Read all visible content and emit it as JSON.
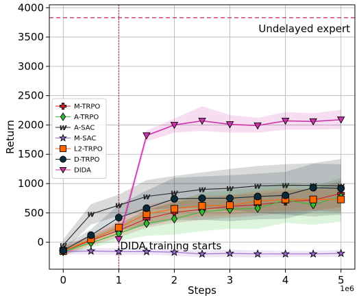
{
  "chart_data": {
    "type": "line",
    "xlabel": "Steps",
    "ylabel": "Return",
    "x_multiplier_label": "1e6",
    "xlim": [
      -0.25,
      5.25
    ],
    "ylim": [
      -460,
      4050
    ],
    "x_ticks": [
      0,
      1,
      2,
      3,
      4,
      5
    ],
    "x_tick_labels": [
      "0",
      "1",
      "2",
      "3",
      "4",
      "5"
    ],
    "y_ticks": [
      0,
      500,
      1000,
      1500,
      2000,
      2500,
      3000,
      3500,
      4000
    ],
    "y_tick_labels": [
      "0",
      "500",
      "1000",
      "1500",
      "2000",
      "2500",
      "3000",
      "3500",
      "4000"
    ],
    "grid": true,
    "legend_position": "center-left",
    "reference_lines": [
      {
        "orientation": "horizontal",
        "value": 3830,
        "color": "#cc3377",
        "label": "Undelayed expert"
      },
      {
        "orientation": "vertical",
        "value": 1,
        "color": "#cc3377",
        "label": "DIDA training starts"
      }
    ],
    "series": [
      {
        "name": "M-TRPO",
        "marker": "plus",
        "color": "#cc2222",
        "x": [
          0,
          0.5,
          1,
          1.5,
          2,
          2.5,
          3,
          3.5,
          4,
          4.5,
          5
        ],
        "y": [
          -150,
          30,
          200,
          400,
          510,
          560,
          610,
          640,
          690,
          720,
          830
        ],
        "band_low": [
          -220,
          -60,
          80,
          250,
          330,
          380,
          420,
          450,
          500,
          530,
          600
        ],
        "band_high": [
          -80,
          120,
          320,
          550,
          690,
          740,
          800,
          830,
          880,
          910,
          1050
        ]
      },
      {
        "name": "A-TRPO",
        "marker": "diamond",
        "color": "#33bb33",
        "x": [
          0,
          0.5,
          1,
          1.5,
          2,
          2.5,
          3,
          3.5,
          4,
          4.5,
          5
        ],
        "y": [
          -160,
          -10,
          150,
          320,
          400,
          520,
          560,
          580,
          720,
          640,
          780
        ],
        "band_low": [
          -230,
          -90,
          20,
          110,
          130,
          190,
          230,
          230,
          330,
          300,
          350
        ],
        "band_high": [
          -90,
          80,
          300,
          540,
          680,
          850,
          890,
          930,
          1020,
          950,
          1100
        ]
      },
      {
        "name": "A-SAC",
        "marker": "w",
        "color": "#222222",
        "x": [
          0,
          0.5,
          1,
          1.5,
          2,
          2.5,
          3,
          3.5,
          4,
          4.5,
          5
        ],
        "y": [
          -50,
          480,
          630,
          780,
          840,
          900,
          920,
          960,
          970,
          970,
          960
        ],
        "band_low": [
          -150,
          300,
          450,
          560,
          580,
          590,
          550,
          500,
          470,
          440,
          470
        ],
        "band_high": [
          50,
          650,
          810,
          1060,
          1130,
          1190,
          1250,
          1300,
          1330,
          1350,
          1420
        ]
      },
      {
        "name": "M-SAC",
        "marker": "star",
        "color": "#9966cc",
        "x": [
          0,
          0.5,
          1,
          1.5,
          2,
          2.5,
          3,
          3.5,
          4,
          4.5,
          5
        ],
        "y": [
          -160,
          -150,
          -160,
          -160,
          -170,
          -200,
          -190,
          -200,
          -200,
          -200,
          -190
        ],
        "band_low": [
          -210,
          -210,
          -220,
          -210,
          -230,
          -260,
          -250,
          -260,
          -250,
          -250,
          -250
        ],
        "band_high": [
          -110,
          -100,
          -100,
          -110,
          -120,
          -140,
          -130,
          -140,
          -150,
          -150,
          -130
        ]
      },
      {
        "name": "L2-TRPO",
        "marker": "square",
        "color": "#ff6600",
        "x": [
          0,
          0.5,
          1,
          1.5,
          2,
          2.5,
          3,
          3.5,
          4,
          4.5,
          5
        ],
        "y": [
          -150,
          50,
          250,
          480,
          570,
          620,
          630,
          700,
          730,
          730,
          730
        ],
        "band_low": [
          -220,
          -30,
          130,
          320,
          400,
          440,
          460,
          520,
          540,
          550,
          530
        ],
        "band_high": [
          -80,
          130,
          370,
          640,
          740,
          800,
          800,
          880,
          920,
          910,
          930
        ]
      },
      {
        "name": "D-TRPO",
        "marker": "circle",
        "color": "#0a2a3a",
        "x": [
          0,
          0.5,
          1,
          1.5,
          2,
          2.5,
          3,
          3.5,
          4,
          4.5,
          5
        ],
        "y": [
          -140,
          120,
          420,
          580,
          740,
          750,
          750,
          780,
          800,
          930,
          920
        ],
        "band_low": [
          -210,
          20,
          200,
          280,
          380,
          380,
          360,
          390,
          400,
          520,
          510
        ],
        "band_high": [
          -70,
          220,
          640,
          880,
          1100,
          1120,
          1140,
          1170,
          1200,
          1340,
          1330
        ]
      },
      {
        "name": "DIDA",
        "marker": "triangle-down",
        "color": "#cc33aa",
        "x": [
          1,
          1.5,
          2,
          2.5,
          3,
          3.5,
          4,
          4.5,
          5
        ],
        "y": [
          50,
          1820,
          2000,
          2070,
          2010,
          1990,
          2070,
          2060,
          2090
        ],
        "band_low": [
          -50,
          1720,
          1870,
          1900,
          1870,
          1870,
          1920,
          1920,
          1930
        ],
        "band_high": [
          150,
          1900,
          2110,
          2320,
          2170,
          2120,
          2220,
          2200,
          2260
        ]
      }
    ]
  }
}
